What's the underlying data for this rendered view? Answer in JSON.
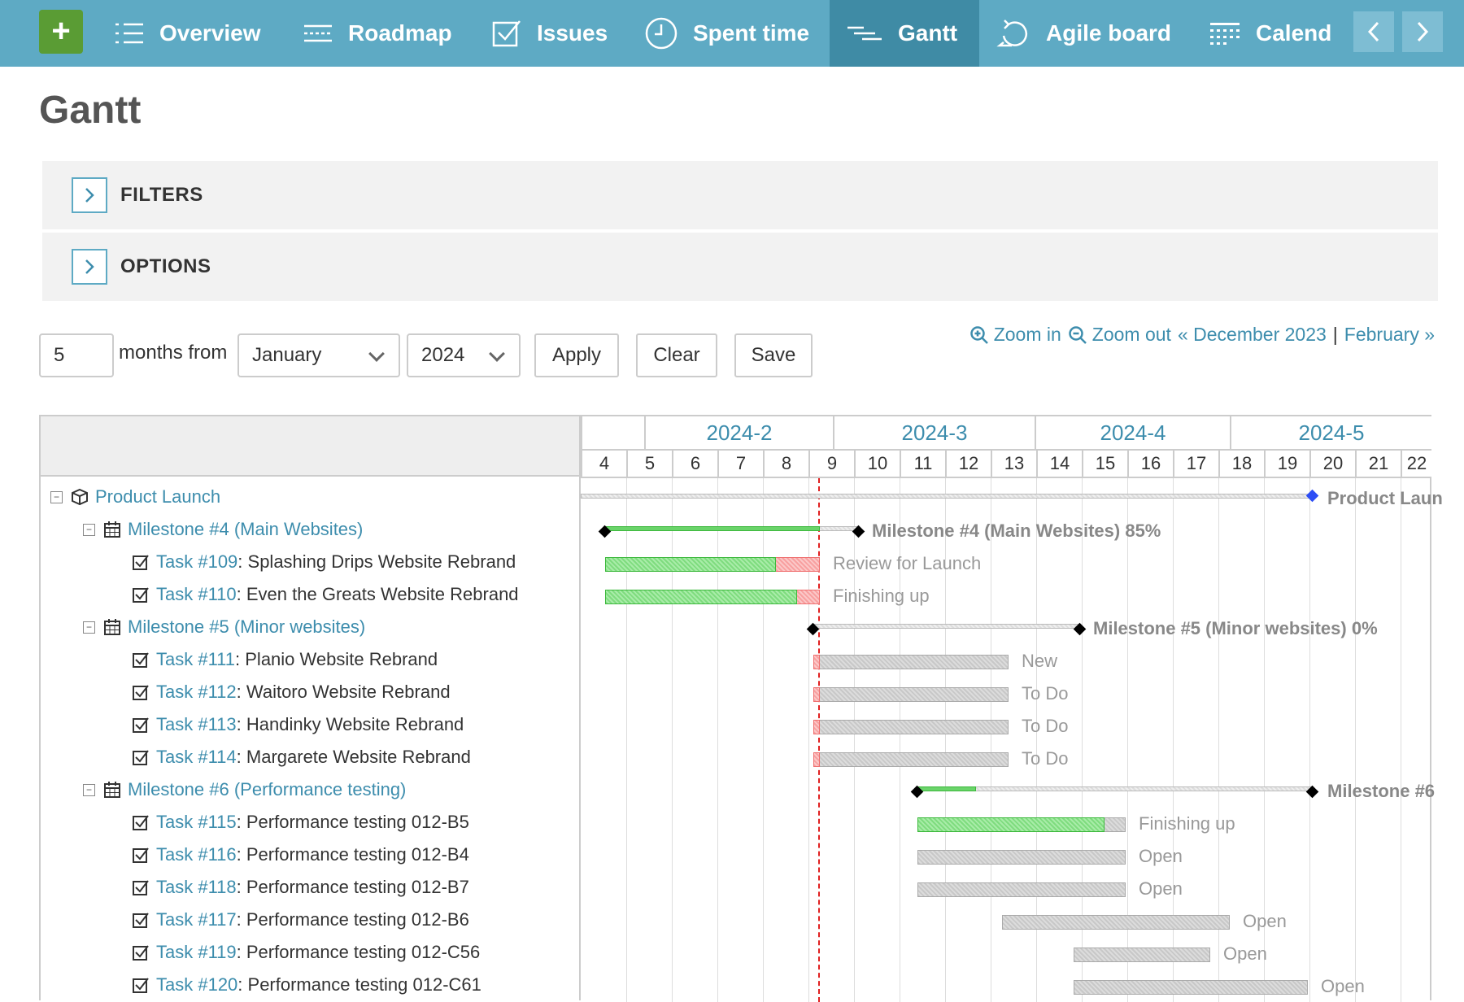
{
  "nav": {
    "items": [
      {
        "label": "Overview",
        "icon": "list-icon"
      },
      {
        "label": "Roadmap",
        "icon": "roadmap-icon"
      },
      {
        "label": "Issues",
        "icon": "checkbox-icon"
      },
      {
        "label": "Spent time",
        "icon": "clock-icon"
      },
      {
        "label": "Gantt",
        "icon": "gantt-icon",
        "active": true
      },
      {
        "label": "Agile board",
        "icon": "refresh-icon"
      },
      {
        "label": "Calend",
        "icon": "calendar-icon"
      }
    ],
    "colors": {
      "bar": "#5eaac4",
      "active": "#3f8ba5",
      "plus": "#5a9c34"
    }
  },
  "page": {
    "title": "Gantt"
  },
  "filters": {
    "label": "FILTERS"
  },
  "options": {
    "label": "OPTIONS"
  },
  "controls": {
    "months_value": "5",
    "months_from_label": "months from",
    "month_select": "January",
    "year_select": "2024",
    "apply_label": "Apply",
    "clear_label": "Clear",
    "save_label": "Save"
  },
  "zoom": {
    "zoom_in": "Zoom in",
    "zoom_out": "Zoom out",
    "prev": "« December 2023",
    "separator": "|",
    "next": "February »"
  },
  "gantt": {
    "months": [
      "2024-2",
      "2024-3",
      "2024-4",
      "2024-5"
    ],
    "weeks": [
      "4",
      "5",
      "6",
      "7",
      "8",
      "9",
      "10",
      "11",
      "12",
      "13",
      "14",
      "15",
      "16",
      "17",
      "18",
      "19",
      "20",
      "21",
      "22"
    ],
    "rows": [
      {
        "type": "project",
        "label": "Product Launch"
      },
      {
        "type": "milestone",
        "label": "Milestone #4 (Main Websites)"
      },
      {
        "type": "task",
        "id": "Task #109",
        "subject": ": Splashing Drips Website Rebrand"
      },
      {
        "type": "task",
        "id": "Task #110",
        "subject": ": Even the Greats Website Rebrand"
      },
      {
        "type": "milestone",
        "label": "Milestone #5 (Minor websites)"
      },
      {
        "type": "task",
        "id": "Task #111",
        "subject": ": Planio Website Rebrand"
      },
      {
        "type": "task",
        "id": "Task #112",
        "subject": ": Waitoro Website Rebrand"
      },
      {
        "type": "task",
        "id": "Task #113",
        "subject": ": Handinky Website Rebrand"
      },
      {
        "type": "task",
        "id": "Task #114",
        "subject": ": Margarete Website Rebrand"
      },
      {
        "type": "milestone",
        "label": "Milestone #6 (Performance testing)"
      },
      {
        "type": "task",
        "id": "Task #115",
        "subject": ": Performance testing 012-B5"
      },
      {
        "type": "task",
        "id": "Task #116",
        "subject": ": Performance testing 012-B4"
      },
      {
        "type": "task",
        "id": "Task #118",
        "subject": ": Performance testing 012-B7"
      },
      {
        "type": "task",
        "id": "Task #117",
        "subject": ": Performance testing 012-B6"
      },
      {
        "type": "task",
        "id": "Task #119",
        "subject": ": Performance testing 012-C56"
      },
      {
        "type": "task",
        "id": "Task #120",
        "subject": ": Performance testing 012-C61"
      }
    ],
    "bar_labels": {
      "project": "Product Laun",
      "ms4": "Milestone #4 (Main Websites) 85%",
      "t109": "Review for Launch",
      "t110": "Finishing up",
      "ms5": "Milestone #5 (Minor websites) 0%",
      "t111": "New",
      "t112": "To Do",
      "t113": "To Do",
      "t114": "To Do",
      "ms6": "Milestone #6",
      "t115": "Finishing up",
      "t116": "Open",
      "t118": "Open",
      "t117": "Open",
      "t119": "Open",
      "t120": "Open"
    },
    "progress": {
      "ms4": 0.85,
      "ms5": 0,
      "t109": 0.8,
      "t110": 0.9,
      "t115": 0.9
    },
    "colors": {
      "done": "#7fdc7f",
      "late": "#f8a0a0",
      "todo": "#c8c8c8",
      "today": "#e02020",
      "project_marker": "#2d4ef5"
    }
  }
}
